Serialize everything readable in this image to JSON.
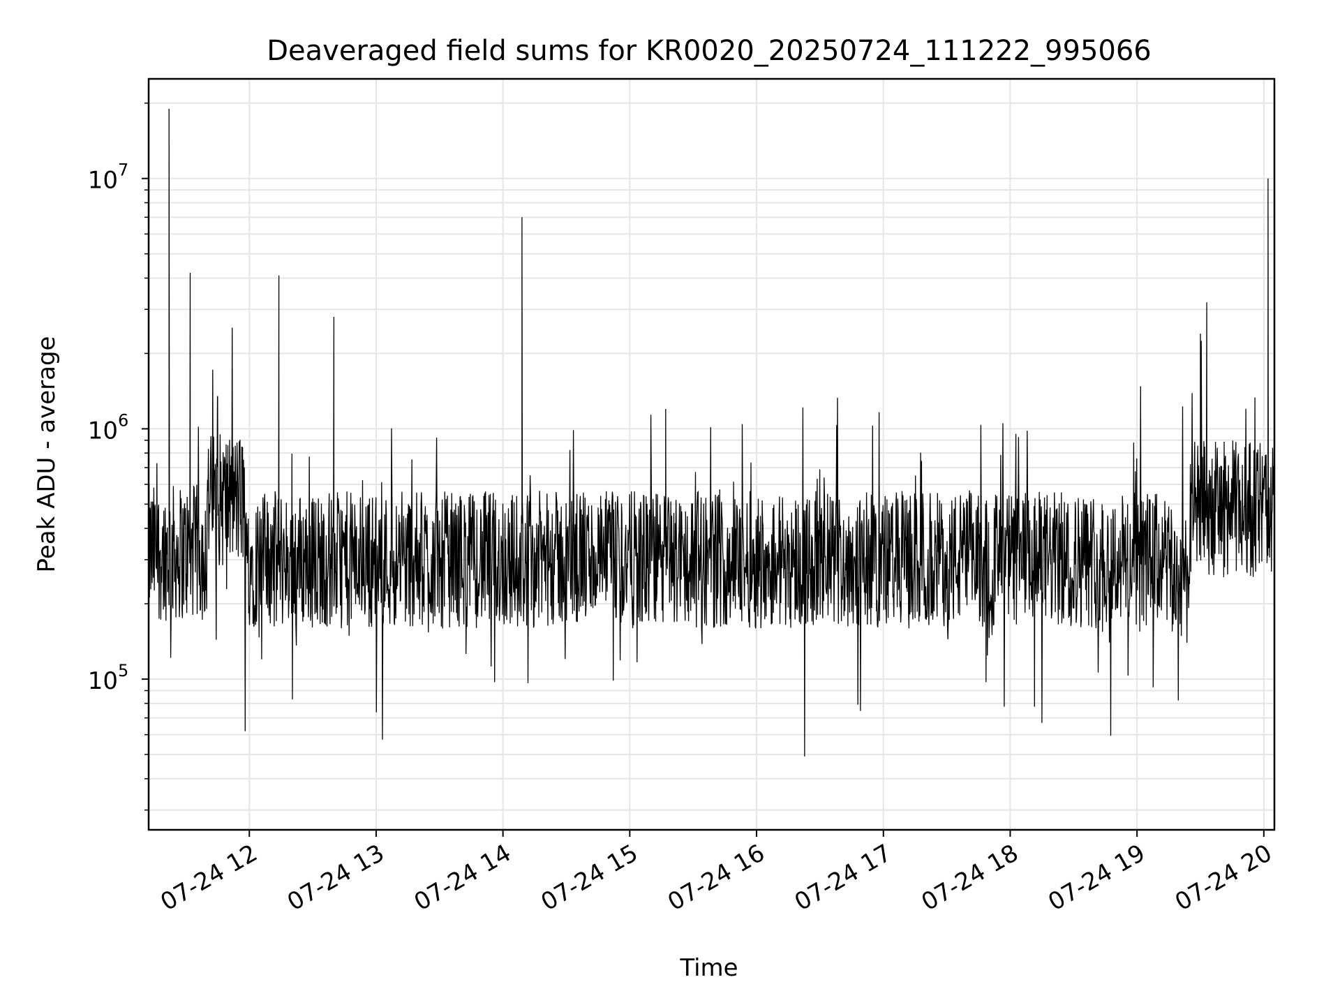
{
  "chart_data": {
    "type": "line",
    "title": "Deaveraged field sums for KR0020_20250724_111222_995066",
    "xlabel": "Time",
    "ylabel": "Peak ADU - average",
    "yscale": "log",
    "ylim": [
      25000,
      25000000
    ],
    "xlim": [
      "2025-07-24T11:12:22",
      "2025-07-24T20:05:00"
    ],
    "x_ticks": [
      {
        "label": "07-24 12",
        "value": "2025-07-24T12:00:00"
      },
      {
        "label": "07-24 13",
        "value": "2025-07-24T13:00:00"
      },
      {
        "label": "07-24 14",
        "value": "2025-07-24T14:00:00"
      },
      {
        "label": "07-24 15",
        "value": "2025-07-24T15:00:00"
      },
      {
        "label": "07-24 16",
        "value": "2025-07-24T16:00:00"
      },
      {
        "label": "07-24 17",
        "value": "2025-07-24T17:00:00"
      },
      {
        "label": "07-24 18",
        "value": "2025-07-24T18:00:00"
      },
      {
        "label": "07-24 19",
        "value": "2025-07-24T19:00:00"
      },
      {
        "label": "07-24 20",
        "value": "2025-07-24T20:00:00"
      }
    ],
    "y_ticks": [
      {
        "value": 100000,
        "base": "10",
        "exp": "5"
      },
      {
        "value": 1000000,
        "base": "10",
        "exp": "6"
      },
      {
        "value": 10000000,
        "base": "10",
        "exp": "7"
      }
    ],
    "grid": true,
    "line_color": "#000000",
    "grid_color": "#e5e5e5",
    "series": [
      {
        "values_note_free": true,
        "x": [
          "2025-07-24T11:12:22",
          "2025-07-24T11:18:00",
          "2025-07-24T11:20:00",
          "2025-07-24T11:22:00",
          "2025-07-24T11:24:00",
          "2025-07-24T11:28:00",
          "2025-07-24T11:32:00",
          "2025-07-24T11:36:00",
          "2025-07-24T11:40:00",
          "2025-07-24T11:45:00",
          "2025-07-24T11:50:00",
          "2025-07-24T11:52:00",
          "2025-07-24T11:56:00",
          "2025-07-24T12:05:00",
          "2025-07-24T12:14:00",
          "2025-07-24T12:16:00",
          "2025-07-24T12:20:00",
          "2025-07-24T12:40:00",
          "2025-07-24T13:00:00",
          "2025-07-24T13:30:00",
          "2025-07-24T13:50:00",
          "2025-07-24T14:07:00",
          "2025-07-24T14:09:00",
          "2025-07-24T14:30:00",
          "2025-07-24T15:00:00",
          "2025-07-24T15:15:00",
          "2025-07-24T15:17:00",
          "2025-07-24T15:40:00",
          "2025-07-24T16:00:00",
          "2025-07-24T16:30:00",
          "2025-07-24T16:47:00",
          "2025-07-24T17:00:00",
          "2025-07-24T17:30:00",
          "2025-07-24T18:00:00",
          "2025-07-24T18:30:00",
          "2025-07-24T19:00:00",
          "2025-07-24T19:20:00",
          "2025-07-24T19:30:00",
          "2025-07-24T19:33:00",
          "2025-07-24T19:40:00",
          "2025-07-24T19:50:00",
          "2025-07-24T20:02:00",
          "2025-07-24T20:05:00"
        ],
        "y": [
          200000,
          300000,
          900000,
          19000000,
          300000,
          400000,
          4200000,
          300000,
          250000,
          1350000,
          700000,
          500000,
          350000,
          350000,
          4100000,
          300000,
          320000,
          2800000,
          300000,
          280000,
          300000,
          320000,
          7000000,
          300000,
          300000,
          300000,
          1200000,
          320000,
          330000,
          340000,
          1050000,
          330000,
          300000,
          280000,
          250000,
          260000,
          400000,
          2400000,
          3200000,
          600000,
          550000,
          10000000,
          450000
        ]
      }
    ]
  }
}
